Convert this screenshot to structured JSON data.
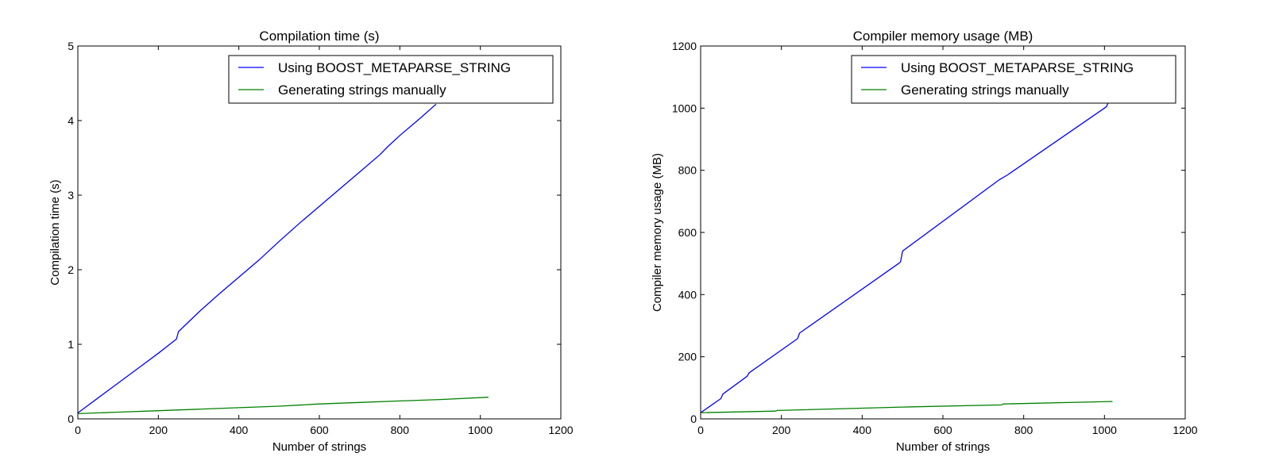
{
  "chart_data": [
    {
      "type": "line",
      "title": "Compilation time (s)",
      "xlabel": "Number of strings",
      "ylabel": "Compilation time (s)",
      "xlim": [
        0,
        1200
      ],
      "ylim": [
        0,
        5
      ],
      "xticks": [
        0,
        200,
        400,
        600,
        800,
        1000,
        1200
      ],
      "yticks": [
        0,
        1,
        2,
        3,
        4,
        5
      ],
      "grid": false,
      "legend_position": "top-right",
      "series": [
        {
          "name": "Using BOOST_METAPARSE_STRING",
          "color": "#0000ff",
          "x": [
            0,
            50,
            100,
            150,
            200,
            245,
            250,
            300,
            350,
            400,
            450,
            500,
            550,
            600,
            650,
            700,
            750,
            770,
            800,
            850,
            890
          ],
          "y": [
            0.08,
            0.28,
            0.48,
            0.68,
            0.88,
            1.07,
            1.17,
            1.43,
            1.67,
            1.9,
            2.13,
            2.38,
            2.62,
            2.85,
            3.08,
            3.31,
            3.54,
            3.65,
            3.8,
            4.03,
            4.22
          ]
        },
        {
          "name": "Generating strings manually",
          "color": "#008000",
          "x": [
            0,
            100,
            200,
            300,
            400,
            500,
            600,
            700,
            800,
            900,
            1020
          ],
          "y": [
            0.07,
            0.09,
            0.11,
            0.13,
            0.15,
            0.17,
            0.2,
            0.22,
            0.24,
            0.26,
            0.29
          ]
        }
      ]
    },
    {
      "type": "line",
      "title": "Compiler memory usage (MB)",
      "xlabel": "Number of strings",
      "ylabel": "Compiler memory usage (MB)",
      "xlim": [
        0,
        1200
      ],
      "ylim": [
        0,
        1200
      ],
      "xticks": [
        0,
        200,
        400,
        600,
        800,
        1000,
        1200
      ],
      "yticks": [
        0,
        200,
        400,
        600,
        800,
        1000,
        1200
      ],
      "grid": false,
      "legend_position": "top-right",
      "series": [
        {
          "name": "Using BOOST_METAPARSE_STRING",
          "color": "#0000ff",
          "x": [
            0,
            50,
            55,
            115,
            120,
            240,
            245,
            490,
            495,
            500,
            740,
            760,
            1000,
            1005,
            1010
          ],
          "y": [
            20,
            65,
            80,
            137,
            148,
            258,
            276,
            500,
            505,
            540,
            770,
            785,
            1000,
            1005,
            1020
          ]
        },
        {
          "name": "Generating strings manually",
          "color": "#008000",
          "x": [
            0,
            185,
            190,
            500,
            745,
            750,
            1020
          ],
          "y": [
            20,
            25,
            27,
            38,
            45,
            48,
            56
          ]
        }
      ]
    }
  ]
}
